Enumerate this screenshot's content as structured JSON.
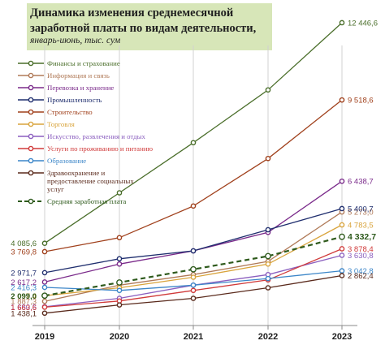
{
  "chart_data": {
    "type": "line",
    "title_lines": [
      "Динамика изменения среднемесячной",
      "заработной платы по видам деятельности,"
    ],
    "subtitle": "январь-июнь, тыс. сум",
    "categories": [
      "2019",
      "2020",
      "2021",
      "2022",
      "2023"
    ],
    "ylim": [
      1000,
      13000
    ],
    "grid": false,
    "legend_position": "top-left",
    "series": [
      {
        "name": "Финансы и страхование",
        "color": "#4a6e2a",
        "dashed": false,
        "bold": false,
        "values": [
          4085.6,
          6000,
          7900,
          9900,
          12446.6
        ],
        "start_label": "4 085,6",
        "end_label": "12 446,6"
      },
      {
        "name": "Информация и связь",
        "color": "#b07a58",
        "dashed": false,
        "bold": false,
        "values": [
          1887.3,
          2500,
          2900,
          3400,
          5273.0
        ],
        "start_label": "1 887,3",
        "end_label": "5 273,0"
      },
      {
        "name": "Перевозка и хранение",
        "color": "#7a2a8a",
        "dashed": false,
        "bold": false,
        "values": [
          2617.2,
          3300,
          3800,
          4500,
          6438.7
        ],
        "start_label": "2 617,2",
        "end_label": "6 438,7"
      },
      {
        "name": "Промышленность",
        "color": "#1f2e6e",
        "dashed": false,
        "bold": false,
        "values": [
          2971.7,
          3500,
          3800,
          4600,
          5400.7
        ],
        "start_label": "2 971,7",
        "end_label": "5 400,7"
      },
      {
        "name": "Строительство",
        "color": "#a0401c",
        "dashed": false,
        "bold": false,
        "values": [
          3769.8,
          4300,
          5500,
          7300,
          9518.6
        ],
        "start_label": "3 769,8",
        "end_label": "9 518,6"
      },
      {
        "name": "Торговля",
        "color": "#d9a43c",
        "dashed": false,
        "bold": false,
        "values": [
          2097.4,
          2400,
          2800,
          3300,
          4783.5
        ],
        "start_label": "2 097,4",
        "end_label": "4 783,5"
      },
      {
        "name": "Искусство, развлечения и отдых",
        "color": "#8b5fbf",
        "dashed": false,
        "bold": false,
        "values": [
          1680.5,
          2000,
          2500,
          2900,
          3630.8
        ],
        "start_label": "1 680,5",
        "end_label": "3 630,8"
      },
      {
        "name": "Услуги по проживанию и питанию",
        "color": "#d03a3a",
        "dashed": false,
        "bold": false,
        "values": [
          1663.6,
          1900,
          2300,
          2700,
          3878.4
        ],
        "start_label": "1 663,6",
        "end_label": "3 878,4"
      },
      {
        "name": "Образование",
        "color": "#3c86c8",
        "dashed": false,
        "bold": false,
        "values": [
          2416.3,
          2300,
          2500,
          2750,
          3042.8
        ],
        "start_label": "2 416,3",
        "end_label": "3 042,8"
      },
      {
        "name": "Здравоохранение и предоставление социальных услуг",
        "color": "#5a2a1c",
        "dashed": false,
        "bold": false,
        "values": [
          1438.1,
          1750,
          2000,
          2400,
          2862.4
        ],
        "start_label": "1 438,1",
        "end_label": "2 862,4"
      },
      {
        "name": "Средняя заработная плата",
        "color": "#2e5a1c",
        "dashed": true,
        "bold": true,
        "values": [
          2099.0,
          2600,
          3100,
          3600,
          4332.7
        ],
        "start_label": "2 099,0",
        "end_label": "4 332,7"
      }
    ]
  }
}
